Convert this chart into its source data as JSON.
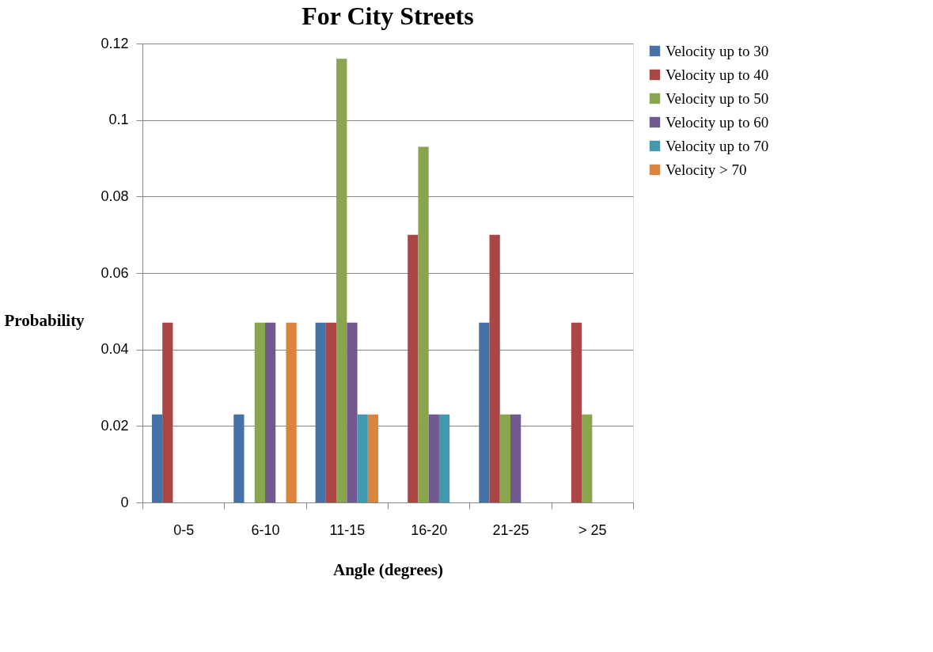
{
  "chart_data": {
    "type": "bar",
    "title": "For City Streets",
    "xlabel": "Angle (degrees)",
    "ylabel": "Probability",
    "categories": [
      "0-5",
      "6-10",
      "11-15",
      "16-20",
      "21-25",
      "> 25"
    ],
    "series": [
      {
        "name": "Velocity up to 30",
        "color": "#4572a7",
        "values": [
          0.023,
          0.023,
          0.047,
          0,
          0.047,
          0
        ]
      },
      {
        "name": "Velocity up to 40",
        "color": "#aa4643",
        "values": [
          0.047,
          0,
          0.047,
          0.07,
          0.07,
          0.047
        ]
      },
      {
        "name": "Velocity up to 50",
        "color": "#89a54e",
        "values": [
          0,
          0.047,
          0.116,
          0.093,
          0.023,
          0.023
        ]
      },
      {
        "name": "Velocity up to 60",
        "color": "#71588f",
        "values": [
          0,
          0.047,
          0.047,
          0.023,
          0.023,
          0
        ]
      },
      {
        "name": "Velocity up to 70",
        "color": "#4198af",
        "values": [
          0,
          0,
          0.023,
          0.023,
          0,
          0
        ]
      },
      {
        "name": "Velocity > 70",
        "color": "#db843d",
        "values": [
          0,
          0.047,
          0.023,
          0,
          0,
          0
        ]
      }
    ],
    "ylim": [
      0,
      0.12
    ],
    "yticks": [
      0,
      0.02,
      0.04,
      0.06,
      0.08,
      0.1,
      0.12
    ],
    "grid": "y",
    "legend": "right"
  }
}
